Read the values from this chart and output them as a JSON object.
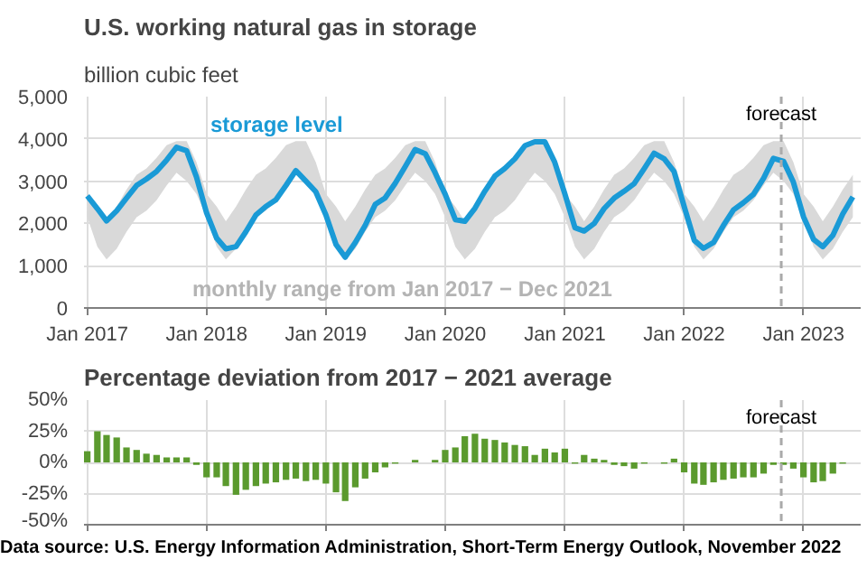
{
  "chart_data": [
    {
      "type": "line",
      "title": "U.S. working natural gas in storage",
      "subtitle": "billion cubic feet",
      "x": [
        "2017-01",
        "2017-02",
        "2017-03",
        "2017-04",
        "2017-05",
        "2017-06",
        "2017-07",
        "2017-08",
        "2017-09",
        "2017-10",
        "2017-11",
        "2017-12",
        "2018-01",
        "2018-02",
        "2018-03",
        "2018-04",
        "2018-05",
        "2018-06",
        "2018-07",
        "2018-08",
        "2018-09",
        "2018-10",
        "2018-11",
        "2018-12",
        "2019-01",
        "2019-02",
        "2019-03",
        "2019-04",
        "2019-05",
        "2019-06",
        "2019-07",
        "2019-08",
        "2019-09",
        "2019-10",
        "2019-11",
        "2019-12",
        "2020-01",
        "2020-02",
        "2020-03",
        "2020-04",
        "2020-05",
        "2020-06",
        "2020-07",
        "2020-08",
        "2020-09",
        "2020-10",
        "2020-11",
        "2020-12",
        "2021-01",
        "2021-02",
        "2021-03",
        "2021-04",
        "2021-05",
        "2021-06",
        "2021-07",
        "2021-08",
        "2021-09",
        "2021-10",
        "2021-11",
        "2021-12",
        "2022-01",
        "2022-02",
        "2022-03",
        "2022-04",
        "2022-05",
        "2022-06",
        "2022-07",
        "2022-08",
        "2022-09",
        "2022-10",
        "2022-11",
        "2022-12",
        "2023-01",
        "2023-02",
        "2023-03",
        "2023-04",
        "2023-05",
        "2023-06"
      ],
      "series": [
        {
          "name": "storage level",
          "color": "#1a9ad6",
          "values": [
            2650,
            2350,
            2060,
            2300,
            2600,
            2900,
            3050,
            3230,
            3500,
            3800,
            3720,
            3100,
            2250,
            1650,
            1400,
            1450,
            1800,
            2200,
            2400,
            2560,
            2900,
            3250,
            3000,
            2750,
            2200,
            1500,
            1200,
            1550,
            1950,
            2450,
            2600,
            2950,
            3350,
            3750,
            3650,
            3200,
            2690,
            2090,
            2050,
            2360,
            2760,
            3120,
            3300,
            3530,
            3840,
            3930,
            3930,
            3450,
            2700,
            1900,
            1820,
            2000,
            2350,
            2600,
            2760,
            2940,
            3300,
            3660,
            3530,
            3230,
            2400,
            1600,
            1410,
            1550,
            1950,
            2320,
            2490,
            2690,
            3070,
            3540,
            3470,
            2980,
            2160,
            1620,
            1450,
            1720,
            2220,
            2630
          ],
          "lower": [
            2150,
            1450,
            1150,
            1400,
            1800,
            2150,
            2300,
            2550,
            2900,
            3200,
            3000,
            2700,
            2150,
            1450,
            1150,
            1400,
            1800,
            2150,
            2300,
            2550,
            2900,
            3200,
            3000,
            2700,
            2150,
            1450,
            1150,
            1400,
            1800,
            2150,
            2300,
            2550,
            2900,
            3200,
            3000,
            2700,
            2150,
            1450,
            1150,
            1400,
            1800,
            2150,
            2300,
            2550,
            2900,
            3200,
            3000,
            2700,
            2150,
            1450,
            1150,
            1400,
            1800,
            2150,
            2300,
            2550,
            2900,
            3200,
            3000,
            2700,
            2150,
            1450,
            1150,
            1400,
            1800,
            2150,
            2300,
            2550,
            2900,
            3200,
            3000,
            2700,
            2150,
            1450,
            1150,
            1400,
            1800,
            2150
          ],
          "upper": [
            2700,
            2400,
            2050,
            2400,
            2800,
            3150,
            3300,
            3550,
            3850,
            3950,
            3950,
            3450,
            2700,
            2400,
            2050,
            2400,
            2800,
            3150,
            3300,
            3550,
            3850,
            3950,
            3950,
            3450,
            2700,
            2400,
            2050,
            2400,
            2800,
            3150,
            3300,
            3550,
            3850,
            3950,
            3950,
            3450,
            2700,
            2400,
            2050,
            2400,
            2800,
            3150,
            3300,
            3550,
            3850,
            3950,
            3950,
            3450,
            2700,
            2400,
            2050,
            2400,
            2800,
            3150,
            3300,
            3550,
            3850,
            3950,
            3950,
            3450,
            2700,
            2400,
            2050,
            2400,
            2800,
            3150,
            3300,
            3550,
            3850,
            3950,
            3950,
            3450,
            2700,
            2400,
            2050,
            2400,
            2800,
            3150
          ]
        }
      ],
      "annotations": [
        "monthly range from Jan 2017 − Dec 2021"
      ],
      "xlim": [
        "2016-12-22",
        "2023-06-25"
      ],
      "xticks": [
        {
          "value": "2017-01",
          "label": "Jan 2017"
        },
        {
          "value": "2018-01",
          "label": "Jan 2018"
        },
        {
          "value": "2019-01",
          "label": "Jan 2019"
        },
        {
          "value": "2020-01",
          "label": "Jan 2020"
        },
        {
          "value": "2021-01",
          "label": "Jan 2021"
        },
        {
          "value": "2022-01",
          "label": "Jan 2022"
        },
        {
          "value": "2023-01",
          "label": "Jan 2023"
        }
      ],
      "ylim": [
        0,
        5000
      ],
      "yticks": [
        0,
        {
          "value": 1000,
          "label": "1,000"
        },
        {
          "value": 2000,
          "label": "2,000"
        },
        {
          "value": 3000,
          "label": "3,000"
        },
        {
          "value": 4000,
          "label": "4,000"
        },
        {
          "value": 5000,
          "label": "5,000"
        }
      ],
      "ref_lines": [
        {
          "axis": "x",
          "value": "2022-10-25",
          "label": "forecast",
          "color": "#aaaaaa",
          "line_style": "dashed"
        }
      ],
      "grid": true
    },
    {
      "type": "bar",
      "title": "Percentage deviation from 2017 − 2021 average",
      "x": [
        "2017-01",
        "2017-02",
        "2017-03",
        "2017-04",
        "2017-05",
        "2017-06",
        "2017-07",
        "2017-08",
        "2017-09",
        "2017-10",
        "2017-11",
        "2017-12",
        "2018-01",
        "2018-02",
        "2018-03",
        "2018-04",
        "2018-05",
        "2018-06",
        "2018-07",
        "2018-08",
        "2018-09",
        "2018-10",
        "2018-11",
        "2018-12",
        "2019-01",
        "2019-02",
        "2019-03",
        "2019-04",
        "2019-05",
        "2019-06",
        "2019-07",
        "2019-08",
        "2019-09",
        "2019-10",
        "2019-11",
        "2019-12",
        "2020-01",
        "2020-02",
        "2020-03",
        "2020-04",
        "2020-05",
        "2020-06",
        "2020-07",
        "2020-08",
        "2020-09",
        "2020-10",
        "2020-11",
        "2020-12",
        "2021-01",
        "2021-02",
        "2021-03",
        "2021-04",
        "2021-05",
        "2021-06",
        "2021-07",
        "2021-08",
        "2021-09",
        "2021-10",
        "2021-11",
        "2021-12",
        "2022-01",
        "2022-02",
        "2022-03",
        "2022-04",
        "2022-05",
        "2022-06",
        "2022-07",
        "2022-08",
        "2022-09",
        "2022-10",
        "2022-11",
        "2022-12",
        "2023-01",
        "2023-02",
        "2023-03",
        "2023-04",
        "2023-05",
        "2023-06"
      ],
      "values": [
        9,
        25,
        22,
        20,
        12,
        10,
        7,
        6,
        4,
        4,
        4,
        -2,
        -12,
        -12,
        -19,
        -26,
        -22,
        -19,
        -17,
        -16,
        -14,
        -13,
        -15,
        -14,
        -17,
        -24,
        -31,
        -20,
        -13,
        -8,
        -4,
        -1,
        0,
        2,
        0,
        2,
        10,
        12,
        21,
        23,
        19,
        18,
        16,
        14,
        13,
        6,
        11,
        8,
        11,
        -1,
        6,
        3,
        2,
        -2,
        -3,
        -5,
        -1,
        0,
        -1,
        3,
        -8,
        -17,
        -18,
        -16,
        -14,
        -13,
        -12,
        -12,
        -9,
        -2,
        -2,
        -5,
        -12,
        -16,
        -15,
        -9,
        -1,
        0
      ],
      "color": "#5b9a2e",
      "xlim": [
        "2016-12-22",
        "2023-06-25"
      ],
      "xticks": [
        "2017-01",
        "2018-01",
        "2019-01",
        "2020-01",
        "2021-01",
        "2022-01",
        "2023-01"
      ],
      "ylim": [
        -50,
        50
      ],
      "yticks": [
        {
          "value": -50,
          "label": "-50%"
        },
        {
          "value": -25,
          "label": "-25%"
        },
        {
          "value": 0,
          "label": "0%"
        },
        {
          "value": 25,
          "label": "25%"
        },
        {
          "value": 50,
          "label": "50%"
        }
      ],
      "tick_labels": "y",
      "ref_lines": [
        {
          "axis": "x",
          "value": "2022-10-25",
          "label": "forecast",
          "color": "#aaaaaa",
          "line_style": "dashed"
        }
      ],
      "annotations": [
        "Data source: U.S. Energy Information Administration, Short-Term Energy Outlook, November 2022"
      ],
      "grid": true
    }
  ]
}
